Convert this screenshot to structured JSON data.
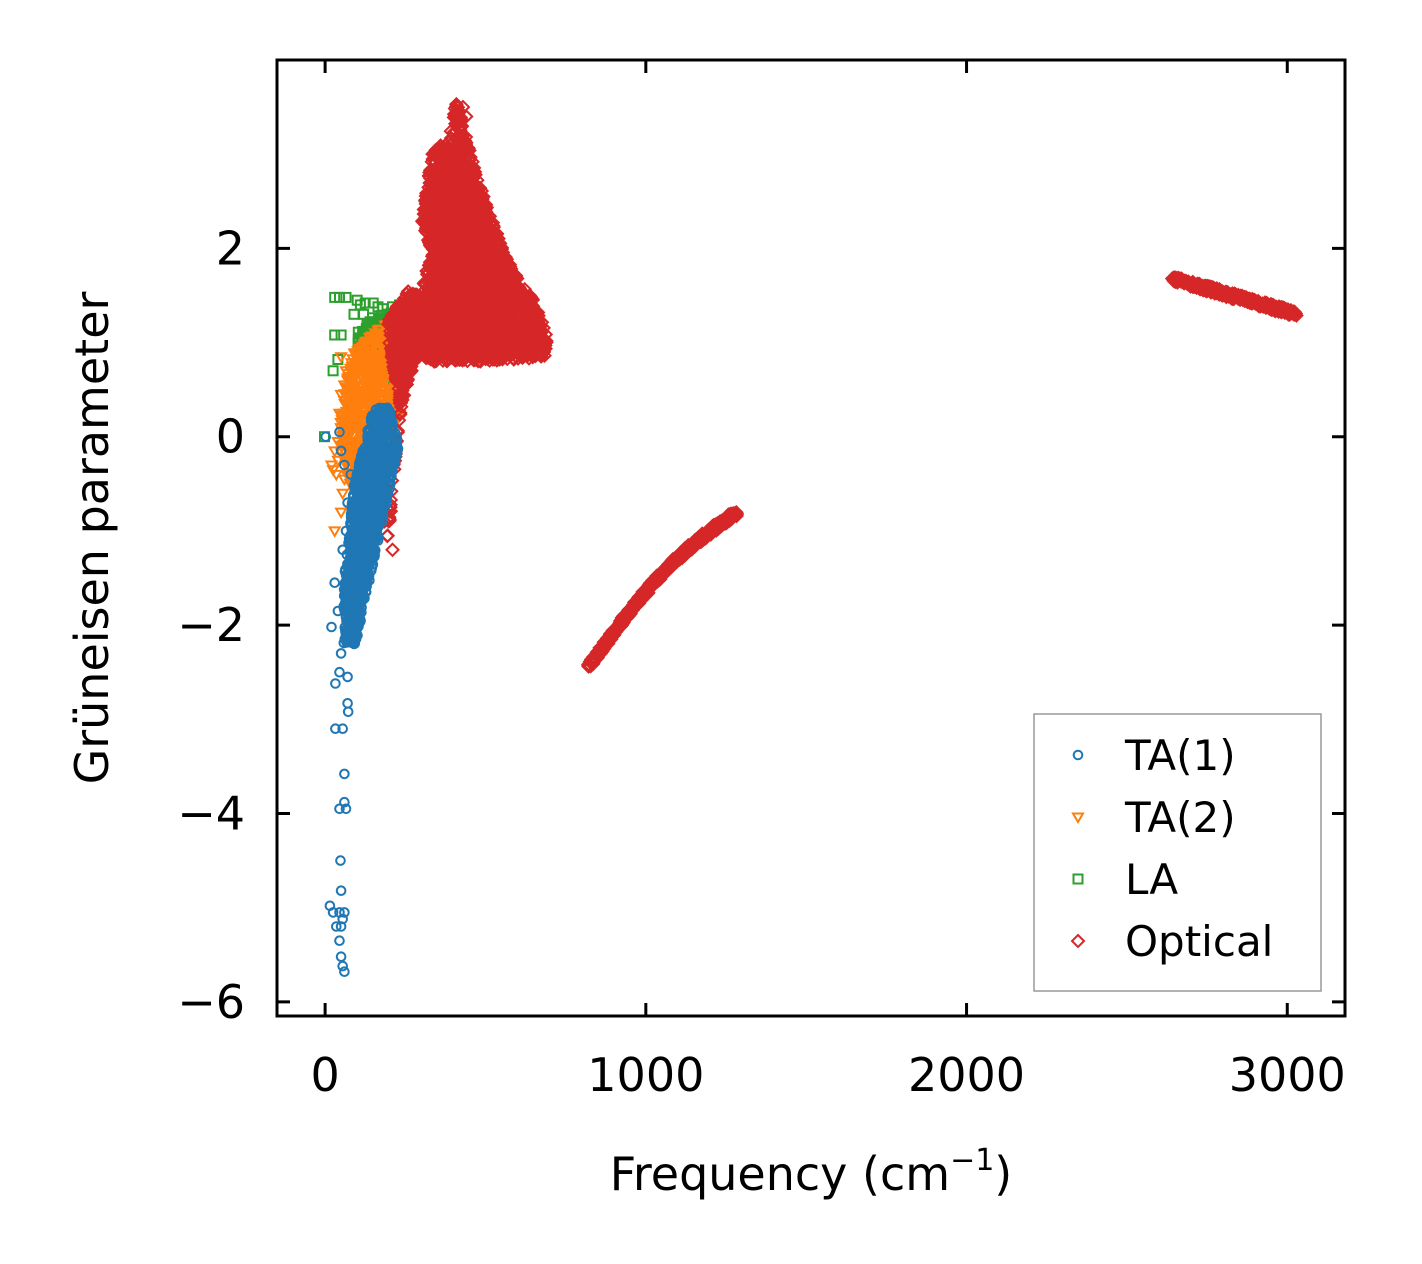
{
  "chart_data": {
    "type": "scatter",
    "xlabel": "Frequency (cm",
    "xlabel_sup": "−1",
    "xlabel_tail": ")",
    "ylabel": "Grüneisen parameter",
    "xlim": [
      -150,
      3180
    ],
    "ylim": [
      -6.15,
      4.0
    ],
    "xticks": [
      {
        "v": 0,
        "label": "0"
      },
      {
        "v": 1000,
        "label": "1000"
      },
      {
        "v": 2000,
        "label": "2000"
      },
      {
        "v": 3000,
        "label": "3000"
      }
    ],
    "yticks": [
      {
        "v": -6,
        "label": "−6"
      },
      {
        "v": -4,
        "label": "−4"
      },
      {
        "v": -2,
        "label": "−2"
      },
      {
        "v": 0,
        "label": "0"
      },
      {
        "v": 2,
        "label": "2"
      }
    ],
    "legend_position": "lower right",
    "series": [
      {
        "name": "TA(1)",
        "marker": "circle",
        "color": "#1f77b4",
        "dense_regions": [
          {
            "poly": [
              [
                55,
                -2.2
              ],
              [
                95,
                -2.2
              ],
              [
                230,
                -0.1
              ],
              [
                200,
                0.32
              ],
              [
                150,
                0.3
              ],
              [
                90,
                -0.5
              ],
              [
                60,
                -1.5
              ]
            ],
            "n": 1100
          }
        ],
        "points": [
          [
            2,
            0
          ],
          [
            30,
            -1.55
          ],
          [
            40,
            -1.85
          ],
          [
            20,
            -2.02
          ],
          [
            50,
            -2.3
          ],
          [
            45,
            -2.5
          ],
          [
            70,
            -2.55
          ],
          [
            32,
            -2.62
          ],
          [
            70,
            -2.83
          ],
          [
            72,
            -2.92
          ],
          [
            32,
            -3.1
          ],
          [
            55,
            -3.1
          ],
          [
            60,
            -3.58
          ],
          [
            45,
            -3.95
          ],
          [
            60,
            -3.88
          ],
          [
            65,
            -3.95
          ],
          [
            48,
            -4.5
          ],
          [
            50,
            -4.82
          ],
          [
            15,
            -4.98
          ],
          [
            25,
            -5.05
          ],
          [
            45,
            -5.05
          ],
          [
            55,
            -5.12
          ],
          [
            60,
            -5.05
          ],
          [
            35,
            -5.2
          ],
          [
            50,
            -5.2
          ],
          [
            45,
            -5.35
          ],
          [
            50,
            -5.52
          ],
          [
            55,
            -5.62
          ],
          [
            60,
            -5.68
          ],
          [
            50,
            -0.15
          ],
          [
            60,
            -0.3
          ],
          [
            45,
            0.05
          ],
          [
            70,
            -0.7
          ],
          [
            65,
            -1.0
          ],
          [
            55,
            -1.2
          ],
          [
            80,
            -0.4
          ],
          [
            100,
            -0.6
          ],
          [
            110,
            -0.25
          ]
        ]
      },
      {
        "name": "TA(2)",
        "marker": "triangle-down",
        "color": "#ff7f0e",
        "dense_regions": [
          {
            "poly": [
              [
                40,
                0.1
              ],
              [
                80,
                0.85
              ],
              [
                130,
                1.05
              ],
              [
                190,
                1.2
              ],
              [
                230,
                1.25
              ],
              [
                240,
                0.3
              ],
              [
                200,
                -0.1
              ],
              [
                140,
                -0.3
              ],
              [
                90,
                -0.6
              ],
              [
                55,
                -0.3
              ]
            ],
            "n": 650
          }
        ],
        "points": [
          [
            20,
            -0.3
          ],
          [
            25,
            -0.35
          ],
          [
            30,
            -0.15
          ],
          [
            35,
            -0.4
          ],
          [
            40,
            -0.25
          ],
          [
            30,
            -1.0
          ],
          [
            50,
            -0.8
          ],
          [
            55,
            -0.6
          ],
          [
            60,
            -0.45
          ],
          [
            45,
            0.25
          ],
          [
            50,
            0.45
          ],
          [
            60,
            0.55
          ],
          [
            65,
            0.7
          ],
          [
            50,
            0.85
          ],
          [
            40,
            -0.05
          ]
        ]
      },
      {
        "name": "LA",
        "marker": "square",
        "color": "#2ca02c",
        "dense_regions": [
          {
            "poly": [
              [
                85,
                0.9
              ],
              [
                110,
                1.2
              ],
              [
                170,
                1.32
              ],
              [
                230,
                1.32
              ],
              [
                245,
                1.2
              ],
              [
                245,
                0.6
              ],
              [
                200,
                0.55
              ],
              [
                140,
                0.7
              ],
              [
                95,
                0.7
              ]
            ],
            "n": 220
          }
        ],
        "points": [
          [
            -2,
            0
          ],
          [
            30,
            1.48
          ],
          [
            45,
            1.48
          ],
          [
            65,
            1.48
          ],
          [
            100,
            1.45
          ],
          [
            110,
            1.4
          ],
          [
            125,
            1.42
          ],
          [
            150,
            1.42
          ],
          [
            165,
            1.38
          ],
          [
            180,
            1.36
          ],
          [
            210,
            1.38
          ],
          [
            232,
            1.4
          ],
          [
            30,
            1.08
          ],
          [
            50,
            1.08
          ],
          [
            40,
            0.82
          ],
          [
            25,
            0.7
          ],
          [
            90,
            1.3
          ],
          [
            120,
            1.3
          ],
          [
            140,
            1.22
          ],
          [
            180,
            1.2
          ]
        ]
      },
      {
        "name": "Optical",
        "marker": "diamond",
        "color": "#d62728",
        "dense_regions": [
          {
            "poly": [
              [
                250,
                0.7
              ],
              [
                270,
                1.1
              ],
              [
                300,
                1.5
              ],
              [
                330,
                2.0
              ],
              [
                350,
                2.6
              ],
              [
                370,
                3.0
              ],
              [
                395,
                3.3
              ],
              [
                410,
                3.6
              ],
              [
                440,
                3.2
              ],
              [
                480,
                2.7
              ],
              [
                520,
                2.3
              ],
              [
                580,
                1.8
              ],
              [
                650,
                1.45
              ],
              [
                690,
                1.1
              ],
              [
                690,
                0.85
              ],
              [
                600,
                0.82
              ],
              [
                500,
                0.8
              ],
              [
                400,
                0.8
              ],
              [
                320,
                0.8
              ],
              [
                300,
                0.9
              ]
            ],
            "n": 2600
          },
          {
            "poly": [
              [
                300,
                2.3
              ],
              [
                340,
                3.1
              ],
              [
                360,
                3.1
              ],
              [
                390,
                2.8
              ],
              [
                380,
                2.3
              ],
              [
                330,
                2.0
              ]
            ],
            "n": 250
          },
          {
            "poly": [
              [
                195,
                1.25
              ],
              [
                260,
                1.55
              ],
              [
                300,
                1.5
              ],
              [
                300,
                1.0
              ],
              [
                270,
                0.7
              ],
              [
                240,
                0.35
              ],
              [
                225,
                0.0
              ],
              [
                215,
                -0.4
              ],
              [
                205,
                -0.8
              ],
              [
                190,
                -1.15
              ],
              [
                200,
                -0.8
              ],
              [
                215,
                -0.2
              ],
              [
                235,
                0.3
              ],
              [
                220,
                0.6
              ],
              [
                200,
                1.0
              ]
            ],
            "n": 520
          }
        ],
        "bands": [
          {
            "from": [
              820,
              -2.45
            ],
            "to": [
              1285,
              -0.8
            ],
            "n": 420,
            "width": 0.04,
            "curve": 0.35
          },
          {
            "from": [
              2640,
              1.68
            ],
            "to": [
              3030,
              1.3
            ],
            "n": 320,
            "width": 0.03,
            "curve": 0.0
          }
        ],
        "points": [
          [
            545,
            0.88
          ],
          [
            560,
            0.92
          ],
          [
            540,
            1.0
          ],
          [
            520,
            1.05
          ],
          [
            500,
            1.2
          ],
          [
            470,
            1.25
          ],
          [
            450,
            1.45
          ],
          [
            430,
            1.65
          ],
          [
            480,
            2.0
          ],
          [
            500,
            1.8
          ],
          [
            430,
            3.5
          ],
          [
            420,
            3.45
          ],
          [
            440,
            3.4
          ],
          [
            520,
            2.2
          ],
          [
            210,
            -1.2
          ],
          [
            195,
            -1.05
          ],
          [
            185,
            -0.9
          ]
        ]
      }
    ]
  }
}
